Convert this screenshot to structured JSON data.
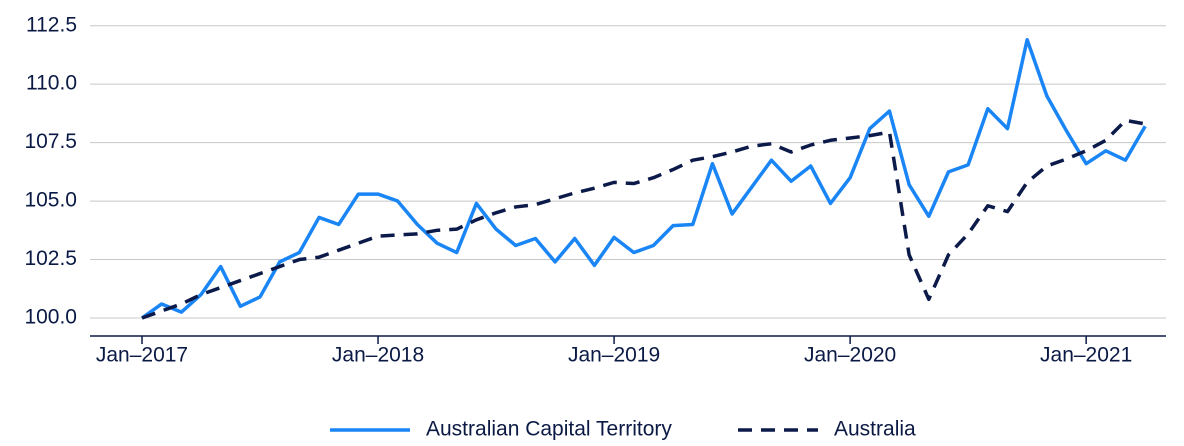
{
  "chart_data": {
    "type": "line",
    "categories": [
      "Jan–2017",
      null,
      null,
      null,
      null,
      null,
      null,
      null,
      null,
      null,
      null,
      null,
      "Jan–2018",
      null,
      null,
      null,
      null,
      null,
      null,
      null,
      null,
      null,
      null,
      null,
      "Jan–2019",
      null,
      null,
      null,
      null,
      null,
      null,
      null,
      null,
      null,
      null,
      null,
      "Jan–2020",
      null,
      null,
      null,
      null,
      null,
      null,
      null,
      null,
      null,
      null,
      null,
      "Jan–2021",
      null,
      null,
      null
    ],
    "series": [
      {
        "name": "Australian Capital Territory",
        "color": "#1a85f5",
        "dash": false,
        "values": [
          100.0,
          100.6,
          100.25,
          101.0,
          102.2,
          100.5,
          100.9,
          102.4,
          102.8,
          104.3,
          104.0,
          105.3,
          105.3,
          105.0,
          104.0,
          103.2,
          102.8,
          104.9,
          103.8,
          103.1,
          103.4,
          102.4,
          103.4,
          102.25,
          103.45,
          102.8,
          103.1,
          103.95,
          104.0,
          106.6,
          104.45,
          105.6,
          106.75,
          105.85,
          106.5,
          104.9,
          106.0,
          108.1,
          108.85,
          105.7,
          104.35,
          106.25,
          106.55,
          108.95,
          108.1,
          111.9,
          109.5,
          108.0,
          106.6,
          107.15,
          106.75,
          108.2
        ]
      },
      {
        "name": "Australia",
        "color": "#0c1a4a",
        "dash": true,
        "values": [
          100.0,
          100.3,
          100.6,
          101.0,
          101.3,
          101.6,
          101.9,
          102.2,
          102.5,
          102.6,
          102.9,
          103.2,
          103.5,
          103.55,
          103.6,
          103.75,
          103.8,
          104.2,
          104.5,
          104.75,
          104.85,
          105.1,
          105.35,
          105.55,
          105.8,
          105.75,
          106.0,
          106.35,
          106.75,
          106.9,
          107.1,
          107.35,
          107.45,
          107.1,
          107.4,
          107.6,
          107.7,
          107.8,
          107.95,
          102.7,
          100.8,
          102.7,
          103.6,
          104.8,
          104.55,
          105.8,
          106.5,
          106.8,
          107.15,
          107.6,
          108.45,
          108.3
        ]
      }
    ],
    "ylim": [
      99.23,
      113.6
    ],
    "yticks": [
      {
        "value": 100,
        "label": "100.0"
      },
      102.5,
      {
        "value": 105,
        "label": "105.0"
      },
      107.5,
      {
        "value": 110,
        "label": "110.0"
      },
      112.5
    ],
    "grid": true,
    "legend": "bottom"
  }
}
